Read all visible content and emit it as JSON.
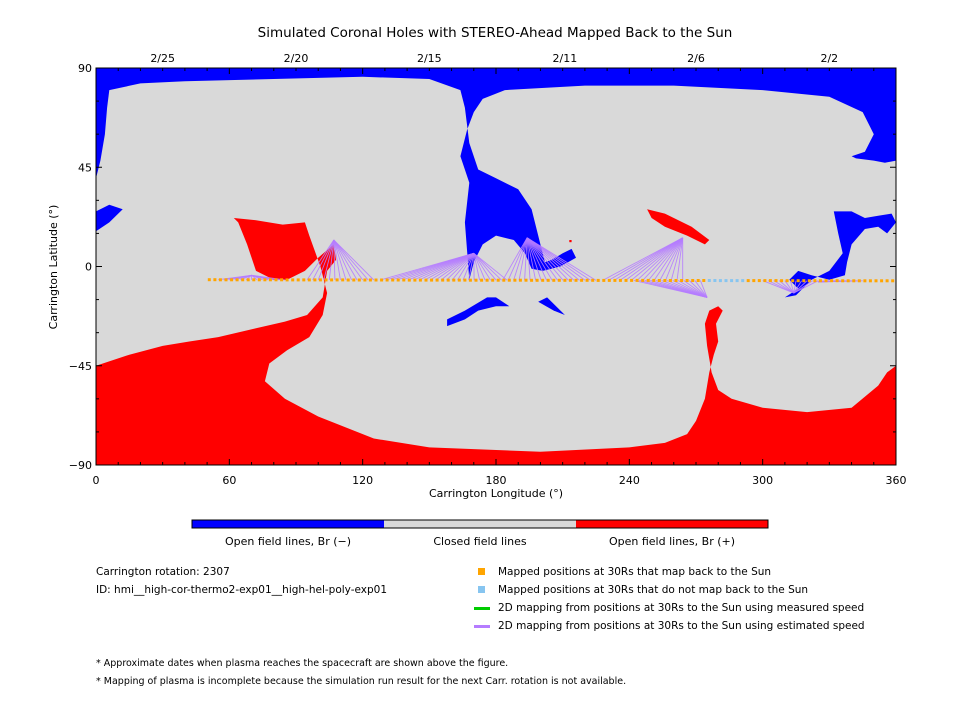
{
  "chart_data": {
    "type": "map",
    "title": "Simulated Coronal Holes with STEREO-Ahead Mapped Back to the Sun",
    "xlabel": "Carrington Longitude (°)",
    "ylabel": "Carrington Latitude (°)",
    "xlim": [
      0,
      360
    ],
    "ylim": [
      -90,
      90
    ],
    "xticks": [
      0,
      60,
      120,
      180,
      240,
      300,
      360
    ],
    "yticks": [
      -90,
      -45,
      0,
      45,
      90
    ],
    "xtick_labels": [
      "0",
      "60",
      "120",
      "180",
      "240",
      "300",
      "360"
    ],
    "ytick_labels": [
      "−90",
      "−45",
      "0",
      "45",
      "90"
    ],
    "top_axis": {
      "dates": [
        {
          "label": "2/25",
          "lon": 30
        },
        {
          "label": "2/20",
          "lon": 90
        },
        {
          "label": "2/15",
          "lon": 150
        },
        {
          "label": "2/11",
          "lon": 211
        },
        {
          "label": "2/6",
          "lon": 270
        },
        {
          "label": "2/2",
          "lon": 330
        }
      ]
    },
    "colors": {
      "open_negative": "#0000ff",
      "closed": "#d9d9d9",
      "open_positive": "#ff0000",
      "mapped_back": "#ffa500",
      "not_mapped": "#87c5f0",
      "measured_speed": "#00cc00",
      "estimated_speed": "#b57cff"
    },
    "regions": {
      "blue_north_polar_boundary": [
        [
          0,
          90
        ],
        [
          0,
          40
        ],
        [
          2,
          48
        ],
        [
          4,
          60
        ],
        [
          5,
          72
        ],
        [
          6,
          80
        ],
        [
          20,
          83
        ],
        [
          40,
          84
        ],
        [
          80,
          85
        ],
        [
          120,
          86
        ],
        [
          150,
          85
        ],
        [
          164,
          80
        ],
        [
          166,
          72
        ],
        [
          168,
          56
        ],
        [
          172,
          44
        ],
        [
          180,
          40
        ],
        [
          190,
          35
        ],
        [
          196,
          26
        ],
        [
          198,
          18
        ],
        [
          200,
          10
        ],
        [
          202,
          2
        ],
        [
          205,
          3
        ],
        [
          210,
          6
        ],
        [
          214,
          8
        ],
        [
          216,
          4
        ],
        [
          209,
          0
        ],
        [
          201,
          -2
        ],
        [
          196,
          -1
        ],
        [
          193,
          6
        ],
        [
          188,
          12
        ],
        [
          180,
          14
        ],
        [
          174,
          10
        ],
        [
          170,
          2
        ],
        [
          168,
          -6
        ],
        [
          166,
          20
        ],
        [
          168,
          38
        ],
        [
          164,
          50
        ],
        [
          167,
          62
        ],
        [
          170,
          70
        ],
        [
          174,
          76
        ],
        [
          184,
          80
        ],
        [
          220,
          82
        ],
        [
          260,
          82
        ],
        [
          300,
          80
        ],
        [
          330,
          77
        ],
        [
          345,
          70
        ],
        [
          350,
          60
        ],
        [
          346,
          52
        ],
        [
          340,
          50
        ],
        [
          342,
          49
        ],
        [
          350,
          48
        ],
        [
          355,
          47
        ],
        [
          360,
          48
        ],
        [
          360,
          90
        ]
      ],
      "blue_mid_patch_a": [
        [
          158,
          -24
        ],
        [
          166,
          -20
        ],
        [
          176,
          -14
        ],
        [
          180,
          -14
        ],
        [
          186,
          -18
        ],
        [
          180,
          -18
        ],
        [
          172,
          -20
        ],
        [
          166,
          -24
        ],
        [
          158,
          -27
        ]
      ],
      "blue_mid_patch_b": [
        [
          199,
          -16
        ],
        [
          203,
          -14
        ],
        [
          211,
          -22
        ],
        [
          206,
          -20
        ]
      ],
      "blue_west_patch": [
        [
          0,
          25
        ],
        [
          6,
          28
        ],
        [
          12,
          26
        ],
        [
          6,
          20
        ],
        [
          0,
          16
        ]
      ],
      "blue_east_patch": [
        [
          332,
          25
        ],
        [
          340,
          25
        ],
        [
          346,
          22
        ],
        [
          352,
          23
        ],
        [
          358,
          24
        ],
        [
          360,
          20
        ],
        [
          356,
          15
        ],
        [
          352,
          18
        ],
        [
          346,
          17
        ],
        [
          340,
          10
        ],
        [
          338,
          2
        ],
        [
          337,
          -4
        ],
        [
          330,
          -6
        ],
        [
          322,
          -4
        ],
        [
          316,
          -2
        ],
        [
          312,
          -6
        ],
        [
          316,
          -10
        ],
        [
          310,
          -14
        ],
        [
          315,
          -13
        ],
        [
          322,
          -6
        ],
        [
          330,
          -2
        ],
        [
          336,
          6
        ],
        [
          334,
          15
        ]
      ],
      "red_south_polar_boundary": [
        [
          0,
          -90
        ],
        [
          0,
          -45
        ],
        [
          15,
          -40
        ],
        [
          30,
          -36
        ],
        [
          42,
          -34
        ],
        [
          55,
          -32
        ],
        [
          72,
          -28
        ],
        [
          85,
          -25
        ],
        [
          95,
          -22
        ],
        [
          102,
          -14
        ],
        [
          104,
          -2
        ],
        [
          108,
          3
        ],
        [
          107,
          10
        ],
        [
          100,
          4
        ],
        [
          94,
          -2
        ],
        [
          86,
          -6
        ],
        [
          80,
          -6
        ],
        [
          72,
          -2
        ],
        [
          68,
          10
        ],
        [
          64,
          20
        ],
        [
          62,
          22
        ],
        [
          72,
          21
        ],
        [
          84,
          19
        ],
        [
          94,
          20
        ],
        [
          96,
          14
        ],
        [
          101,
          0
        ],
        [
          104,
          -12
        ],
        [
          102,
          -22
        ],
        [
          96,
          -32
        ],
        [
          86,
          -38
        ],
        [
          78,
          -44
        ],
        [
          76,
          -52
        ],
        [
          85,
          -60
        ],
        [
          100,
          -68
        ],
        [
          125,
          -78
        ],
        [
          150,
          -82
        ],
        [
          200,
          -84
        ],
        [
          240,
          -82
        ],
        [
          256,
          -80
        ],
        [
          266,
          -76
        ],
        [
          270,
          -70
        ],
        [
          274,
          -60
        ],
        [
          276,
          -48
        ],
        [
          278,
          -40
        ],
        [
          280,
          -34
        ],
        [
          279,
          -26
        ],
        [
          282,
          -20
        ],
        [
          280,
          -18
        ],
        [
          276,
          -20
        ],
        [
          274,
          -26
        ],
        [
          275,
          -36
        ],
        [
          277,
          -48
        ],
        [
          280,
          -56
        ],
        [
          286,
          -60
        ],
        [
          300,
          -64
        ],
        [
          320,
          -66
        ],
        [
          340,
          -64
        ],
        [
          352,
          -54
        ],
        [
          356,
          -48
        ],
        [
          360,
          -45
        ],
        [
          360,
          -90
        ]
      ],
      "red_small_patch": [
        [
          248,
          26
        ],
        [
          256,
          24
        ],
        [
          268,
          18
        ],
        [
          276,
          12
        ],
        [
          274,
          10
        ],
        [
          266,
          14
        ],
        [
          256,
          18
        ],
        [
          250,
          22
        ]
      ],
      "red_dot_a": [
        [
          76,
          8
        ],
        [
          79,
          9
        ],
        [
          79,
          6
        ],
        [
          76,
          6
        ]
      ],
      "red_dot_b": [
        [
          213,
          12
        ],
        [
          214,
          12
        ],
        [
          214,
          11
        ],
        [
          213,
          11
        ]
      ]
    },
    "mapped_lon_start": 51,
    "mapped_lon_end": 360,
    "mapped_lon_step": 2.5,
    "mapped_lat_start": -6,
    "mapped_lat_end": -6.5,
    "not_mapped_ranges": [
      [
        275,
        292
      ]
    ],
    "trace_targets": [
      {
        "lon": 70,
        "lat": -4,
        "from_lon": 55,
        "to_lon": 85
      },
      {
        "lon": 107,
        "lat": 12,
        "from_lon": 95,
        "to_lon": 125
      },
      {
        "lon": 170,
        "lat": 6,
        "from_lon": 128,
        "to_lon": 185
      },
      {
        "lon": 194,
        "lat": 13,
        "from_lon": 183,
        "to_lon": 225
      },
      {
        "lon": 264,
        "lat": 13,
        "from_lon": 228,
        "to_lon": 264
      },
      {
        "lon": 275,
        "lat": -14,
        "from_lon": 242,
        "to_lon": 272
      },
      {
        "lon": 314,
        "lat": -12,
        "from_lon": 300,
        "to_lon": 325
      },
      {
        "lon": 325,
        "lat": -7,
        "from_lon": 325,
        "to_lon": 345
      }
    ]
  },
  "colorbar": {
    "labels": [
      "Open field lines, Br (−)",
      "Closed field lines",
      "Open field lines, Br (+)"
    ]
  },
  "info": {
    "rotation": "Carrington rotation: 2307",
    "id": "ID: hmi__high-cor-thermo2-exp01__high-hel-poly-exp01"
  },
  "legend": {
    "items": [
      {
        "label": "Mapped positions at 30Rs that map back to the Sun",
        "kind": "dot",
        "color": "#ffa500"
      },
      {
        "label": "Mapped positions at 30Rs that do not map back to the Sun",
        "kind": "dot",
        "color": "#87c5f0"
      },
      {
        "label": "2D mapping from positions at 30Rs to the Sun using measured speed",
        "kind": "line",
        "color": "#00cc00"
      },
      {
        "label": "2D mapping from positions at 30Rs to the Sun using estimated speed",
        "kind": "line",
        "color": "#b57cff"
      }
    ]
  },
  "notes": [
    "* Approximate dates when plasma reaches the spacecraft are shown above the figure.",
    "* Mapping of plasma is incomplete because the simulation run result for the next Carr. rotation is not available."
  ]
}
